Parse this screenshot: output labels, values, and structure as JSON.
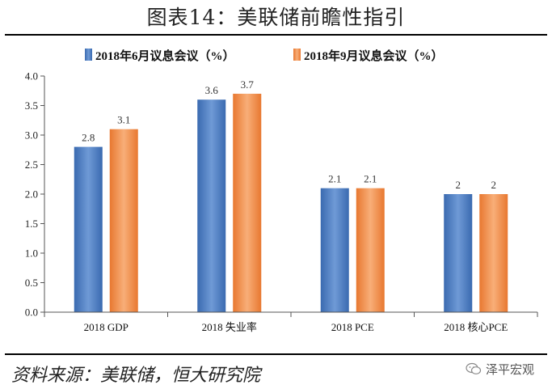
{
  "figure": {
    "title": "图表14：美联储前瞻性指引",
    "source": "资料来源：美联储，恒大研究院",
    "watermark": "泽平宏观"
  },
  "chart_data": {
    "type": "bar",
    "title": "图表14：美联储前瞻性指引",
    "categories": [
      "2018 GDP",
      "2018 失业率",
      "2018 PCE",
      "2018 核心PCE"
    ],
    "series": [
      {
        "name": "2018年6月议息会议（%）",
        "color": "#4a7cc0",
        "values": [
          2.8,
          3.6,
          2.1,
          2
        ],
        "labels": [
          "2.8",
          "3.6",
          "2.1",
          "2"
        ]
      },
      {
        "name": "2018年9月议息会议（%）",
        "color": "#f28e4b",
        "values": [
          3.1,
          3.7,
          2.1,
          2
        ],
        "labels": [
          "3.1",
          "3.7",
          "2.1",
          "2"
        ]
      }
    ],
    "ylim": [
      0,
      4
    ],
    "yticks": [
      "0.0",
      "0.5",
      "1.0",
      "1.5",
      "2.0",
      "2.5",
      "3.0",
      "3.5",
      "4.0"
    ],
    "xlabel": "",
    "ylabel": "",
    "grid": false,
    "legend_position": "top"
  }
}
